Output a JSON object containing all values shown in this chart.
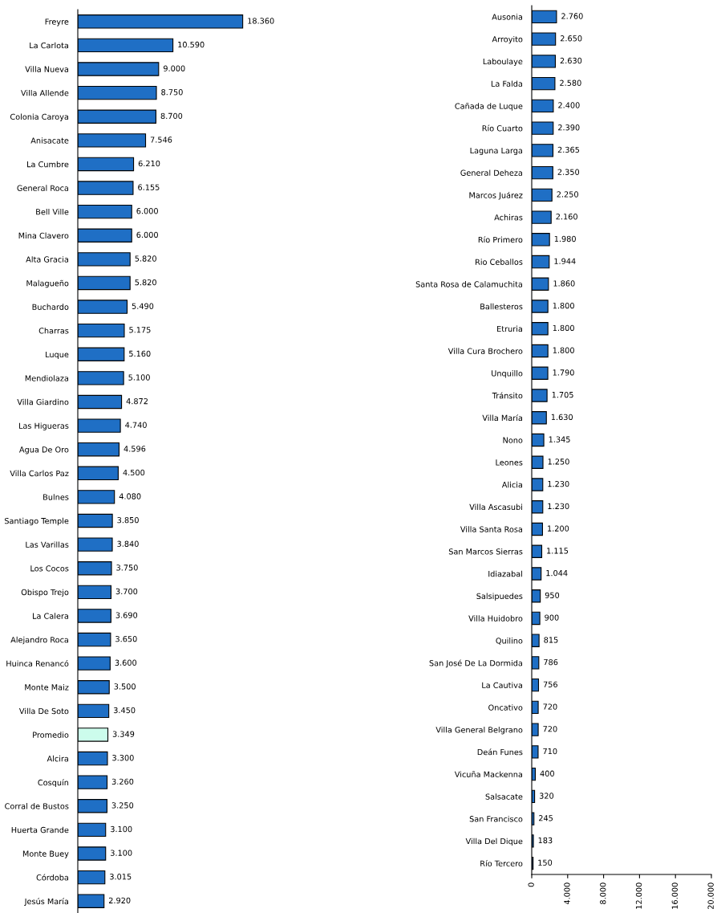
{
  "chart_data": [
    {
      "type": "bar",
      "orientation": "horizontal",
      "tick_labels": "y",
      "categories": [
        "Freyre",
        "La Carlota",
        "Villa Nueva",
        "Villa Allende",
        "Colonia Caroya",
        "Anisacate",
        "La Cumbre",
        "General Roca",
        "Bell Ville",
        "Mina Clavero",
        "Alta Gracia",
        "Malagueño",
        "Buchardo",
        "Charras",
        "Luque",
        "Mendiolaza",
        "Villa Giardino",
        "Las Higueras",
        "Agua De Oro",
        "Villa Carlos Paz",
        "Bulnes",
        "Santiago Temple",
        "Las Varillas",
        "Los Cocos",
        "Obispo Trejo",
        "La Calera",
        "Alejandro Roca",
        "Huinca Renancó",
        "Monte Maiz",
        "Villa De Soto",
        "Promedio",
        "Alcira",
        "Cosquín",
        "Corral de Bustos",
        "Huerta Grande",
        "Monte Buey",
        "Córdoba",
        "Jesús María"
      ],
      "values": [
        18360,
        10590,
        9000,
        8750,
        8700,
        7546,
        6210,
        6155,
        6000,
        6000,
        5820,
        5820,
        5490,
        5175,
        5160,
        5100,
        4872,
        4740,
        4596,
        4500,
        4080,
        3850,
        3840,
        3750,
        3700,
        3690,
        3650,
        3600,
        3500,
        3450,
        3349,
        3300,
        3260,
        3250,
        3100,
        3100,
        3015,
        2920
      ],
      "value_labels": [
        "18.360",
        "10.590",
        "9.000",
        "8.750",
        "8.700",
        "7.546",
        "6.210",
        "6.155",
        "6.000",
        "6.000",
        "5.820",
        "5.820",
        "5.490",
        "5.175",
        "5.160",
        "5.100",
        "4.872",
        "4.740",
        "4.596",
        "4.500",
        "4.080",
        "3.850",
        "3.840",
        "3.750",
        "3.700",
        "3.690",
        "3.650",
        "3.600",
        "3.500",
        "3.450",
        "3.349",
        "3.300",
        "3.260",
        "3.250",
        "3.100",
        "3.100",
        "3.015",
        "2.920"
      ],
      "colors": [
        "#1f6fc5",
        "#1f6fc5",
        "#1f6fc5",
        "#1f6fc5",
        "#1f6fc5",
        "#1f6fc5",
        "#1f6fc5",
        "#1f6fc5",
        "#1f6fc5",
        "#1f6fc5",
        "#1f6fc5",
        "#1f6fc5",
        "#1f6fc5",
        "#1f6fc5",
        "#1f6fc5",
        "#1f6fc5",
        "#1f6fc5",
        "#1f6fc5",
        "#1f6fc5",
        "#1f6fc5",
        "#1f6fc5",
        "#1f6fc5",
        "#1f6fc5",
        "#1f6fc5",
        "#1f6fc5",
        "#1f6fc5",
        "#1f6fc5",
        "#1f6fc5",
        "#1f6fc5",
        "#1f6fc5",
        "#ccfcec",
        "#1f6fc5",
        "#1f6fc5",
        "#1f6fc5",
        "#1f6fc5",
        "#1f6fc5",
        "#1f6fc5",
        "#1f6fc5"
      ]
    },
    {
      "type": "bar",
      "orientation": "horizontal",
      "xlim": [
        0,
        20000
      ],
      "xticks": [
        {
          "value": 0,
          "label": "0"
        },
        {
          "value": 4000,
          "label": "4.000"
        },
        {
          "value": 8000,
          "label": "8.000"
        },
        {
          "value": 12000,
          "label": "12.000"
        },
        {
          "value": 16000,
          "label": "16.000"
        },
        {
          "value": 20000,
          "label": "20.000"
        }
      ],
      "categories": [
        "Ausonia",
        "Arroyito",
        "Laboulaye",
        "La Falda",
        "Cañada de Luque",
        "Río Cuarto",
        "Laguna Larga",
        "General Deheza",
        "Marcos Juárez",
        "Achiras",
        "Río Primero",
        "Rio Ceballos",
        "Santa Rosa de Calamuchita",
        "Ballesteros",
        "Etruria",
        "Villa Cura Brochero",
        "Unquillo",
        "Tránsito",
        "Villa María",
        "Nono",
        "Leones",
        "Alicia",
        "Villa Ascasubi",
        "Villa Santa Rosa",
        "San Marcos Sierras",
        "Idiazabal",
        "Salsipuedes",
        "Villa Huidobro",
        "Quilino",
        "San José De La Dormida",
        "La Cautiva",
        "Oncativo",
        "Villa General Belgrano",
        "Deán Funes",
        "Vicuña Mackenna",
        "Salsacate",
        "San Francisco",
        "Villa Del Dique",
        "Río Tercero"
      ],
      "values": [
        2760,
        2650,
        2630,
        2580,
        2400,
        2390,
        2365,
        2350,
        2250,
        2160,
        1980,
        1944,
        1860,
        1800,
        1800,
        1800,
        1790,
        1705,
        1630,
        1345,
        1250,
        1230,
        1230,
        1200,
        1115,
        1044,
        950,
        900,
        815,
        786,
        756,
        720,
        720,
        710,
        400,
        320,
        245,
        183,
        150
      ],
      "value_labels": [
        "2.760",
        "2.650",
        "2.630",
        "2.580",
        "2.400",
        "2.390",
        "2.365",
        "2.350",
        "2.250",
        "2.160",
        "1.980",
        "1.944",
        "1.860",
        "1.800",
        "1.800",
        "1.800",
        "1.790",
        "1.705",
        "1.630",
        "1.345",
        "1.250",
        "1.230",
        "1.230",
        "1.200",
        "1.115",
        "1.044",
        "950",
        "900",
        "815",
        "786",
        "756",
        "720",
        "720",
        "710",
        "400",
        "320",
        "245",
        "183",
        "150"
      ],
      "color": "#1f6fc5"
    }
  ]
}
